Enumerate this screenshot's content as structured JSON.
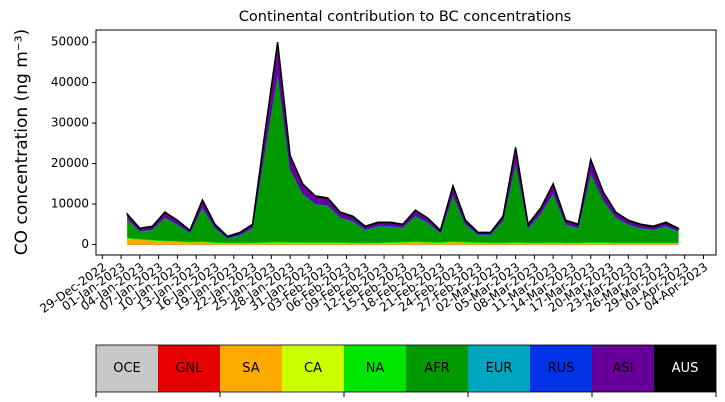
{
  "chart_data": {
    "type": "stacked_area",
    "title": "Continental contribution to BC concentrations",
    "y_label": "CO concentration (ng m⁻³)",
    "x": [
      "2023-01-02",
      "2023-01-04",
      "2023-01-06",
      "2023-01-08",
      "2023-01-10",
      "2023-01-12",
      "2023-01-14",
      "2023-01-16",
      "2023-01-18",
      "2023-01-20",
      "2023-01-22",
      "2023-01-24",
      "2023-01-26",
      "2023-01-28",
      "2023-01-30",
      "2023-02-01",
      "2023-02-03",
      "2023-02-05",
      "2023-02-07",
      "2023-02-09",
      "2023-02-11",
      "2023-02-13",
      "2023-02-15",
      "2023-02-17",
      "2023-02-19",
      "2023-02-21",
      "2023-02-23",
      "2023-02-25",
      "2023-02-27",
      "2023-03-01",
      "2023-03-03",
      "2023-03-05",
      "2023-03-07",
      "2023-03-09",
      "2023-03-11",
      "2023-03-13",
      "2023-03-15",
      "2023-03-17",
      "2023-03-19",
      "2023-03-21",
      "2023-03-23",
      "2023-03-25",
      "2023-03-27",
      "2023-03-29",
      "2023-03-31"
    ],
    "series": [
      {
        "name": "OCE",
        "color": "#c8c8c8",
        "values": [
          0,
          0,
          0,
          0,
          0,
          0,
          0,
          0,
          0,
          0,
          0,
          0,
          0,
          0,
          0,
          0,
          0,
          0,
          0,
          0,
          0,
          0,
          0,
          0,
          0,
          0,
          0,
          0,
          0,
          0,
          0,
          0,
          0,
          0,
          0,
          0,
          0,
          0,
          0,
          0,
          0,
          0,
          0,
          0,
          0
        ]
      },
      {
        "name": "GNL",
        "color": "#e60000",
        "values": [
          0,
          0,
          0,
          0,
          0,
          0,
          0,
          0,
          0,
          0,
          0,
          0,
          0,
          0,
          0,
          0,
          0,
          0,
          0,
          0,
          0,
          0,
          0,
          0,
          0,
          0,
          0,
          0,
          0,
          0,
          0,
          0,
          0,
          0,
          0,
          0,
          0,
          0,
          0,
          0,
          0,
          0,
          0,
          0,
          0
        ]
      },
      {
        "name": "SA",
        "color": "#ffaa00",
        "values": [
          1500,
          1200,
          1000,
          800,
          700,
          500,
          600,
          400,
          300,
          300,
          300,
          400,
          500,
          400,
          400,
          400,
          400,
          400,
          300,
          300,
          300,
          400,
          500,
          600,
          500,
          400,
          600,
          500,
          400,
          300,
          300,
          400,
          300,
          300,
          400,
          300,
          300,
          400,
          400,
          300,
          300,
          300,
          300,
          300,
          300
        ]
      },
      {
        "name": "CA",
        "color": "#ccff00",
        "values": [
          0,
          0,
          0,
          0,
          0,
          0,
          0,
          0,
          0,
          0,
          0,
          0,
          0,
          0,
          0,
          0,
          0,
          0,
          0,
          0,
          0,
          0,
          0,
          0,
          0,
          0,
          0,
          0,
          0,
          0,
          0,
          0,
          0,
          0,
          0,
          0,
          0,
          0,
          0,
          0,
          0,
          0,
          0,
          0,
          0
        ]
      },
      {
        "name": "NA",
        "color": "#00e600",
        "values": [
          200,
          200,
          200,
          200,
          200,
          200,
          200,
          200,
          200,
          200,
          200,
          200,
          200,
          200,
          200,
          200,
          200,
          200,
          200,
          200,
          200,
          200,
          200,
          200,
          200,
          200,
          200,
          200,
          200,
          200,
          200,
          200,
          200,
          200,
          200,
          200,
          200,
          200,
          200,
          200,
          200,
          200,
          200,
          200,
          200
        ]
      },
      {
        "name": "AFR",
        "color": "#009900",
        "values": [
          4400,
          1700,
          2300,
          5500,
          3900,
          2000,
          8200,
          3300,
          900,
          1700,
          3400,
          22900,
          41500,
          17800,
          11800,
          9300,
          8900,
          5900,
          5100,
          3000,
          3900,
          3800,
          3300,
          6100,
          4500,
          2100,
          11200,
          4100,
          1700,
          1800,
          5200,
          19500,
          3400,
          6900,
          11900,
          4300,
          3400,
          16900,
          10100,
          6000,
          4300,
          3400,
          3000,
          3900,
          2600
        ]
      },
      {
        "name": "EUR",
        "color": "#00a5c0",
        "values": [
          100,
          100,
          100,
          100,
          100,
          100,
          100,
          100,
          100,
          100,
          100,
          100,
          100,
          100,
          100,
          100,
          100,
          100,
          100,
          100,
          100,
          100,
          100,
          100,
          100,
          100,
          100,
          100,
          100,
          100,
          100,
          100,
          100,
          100,
          100,
          100,
          100,
          100,
          100,
          100,
          100,
          100,
          100,
          100,
          100
        ]
      },
      {
        "name": "RUS",
        "color": "#0033e6",
        "values": [
          100,
          100,
          100,
          100,
          100,
          100,
          100,
          100,
          100,
          100,
          100,
          100,
          100,
          100,
          100,
          100,
          100,
          100,
          100,
          100,
          100,
          100,
          100,
          100,
          100,
          100,
          100,
          100,
          100,
          100,
          100,
          100,
          100,
          100,
          100,
          100,
          100,
          100,
          100,
          100,
          100,
          100,
          100,
          100,
          100
        ]
      },
      {
        "name": "ASI",
        "color": "#660099",
        "values": [
          1100,
          600,
          700,
          1200,
          900,
          500,
          1700,
          800,
          300,
          500,
          800,
          4200,
          7500,
          3300,
          2300,
          1800,
          1700,
          1200,
          1100,
          700,
          800,
          800,
          700,
          1300,
          1000,
          500,
          2200,
          900,
          400,
          400,
          1000,
          3600,
          800,
          1300,
          2200,
          900,
          800,
          3200,
          2000,
          1200,
          900,
          800,
          700,
          800,
          600
        ]
      },
      {
        "name": "AUS",
        "color": "#000000",
        "values": [
          100,
          100,
          100,
          100,
          100,
          100,
          100,
          100,
          100,
          100,
          100,
          100,
          100,
          100,
          100,
          100,
          100,
          100,
          100,
          100,
          100,
          100,
          100,
          100,
          100,
          100,
          100,
          100,
          100,
          100,
          100,
          100,
          100,
          100,
          100,
          100,
          100,
          100,
          100,
          100,
          100,
          100,
          100,
          100,
          100
        ]
      }
    ],
    "xlim": [
      "2022-12-28",
      "2023-04-06"
    ],
    "ylim": [
      -2600,
      53000
    ],
    "yticks": [
      0,
      10000,
      20000,
      30000,
      40000,
      50000
    ],
    "xticks": [
      {
        "value": "2022-12-29",
        "label": "29-Dec-2022"
      },
      {
        "value": "2023-01-01",
        "label": "01-Jan-2023"
      },
      {
        "value": "2023-01-04",
        "label": "04-Jan-2023"
      },
      {
        "value": "2023-01-07",
        "label": "07-Jan-2023"
      },
      {
        "value": "2023-01-10",
        "label": "10-Jan-2023"
      },
      {
        "value": "2023-01-13",
        "label": "13-Jan-2023"
      },
      {
        "value": "2023-01-16",
        "label": "16-Jan-2023"
      },
      {
        "value": "2023-01-19",
        "label": "19-Jan-2023"
      },
      {
        "value": "2023-01-22",
        "label": "22-Jan-2023"
      },
      {
        "value": "2023-01-25",
        "label": "25-Jan-2023"
      },
      {
        "value": "2023-01-28",
        "label": "28-Jan-2023"
      },
      {
        "value": "2023-01-31",
        "label": "31-Jan-2023"
      },
      {
        "value": "2023-02-03",
        "label": "03-Feb-2023"
      },
      {
        "value": "2023-02-06",
        "label": "06-Feb-2023"
      },
      {
        "value": "2023-02-09",
        "label": "09-Feb-2023"
      },
      {
        "value": "2023-02-12",
        "label": "12-Feb-2023"
      },
      {
        "value": "2023-02-15",
        "label": "15-Feb-2023"
      },
      {
        "value": "2023-02-18",
        "label": "18-Feb-2023"
      },
      {
        "value": "2023-02-21",
        "label": "21-Feb-2023"
      },
      {
        "value": "2023-02-24",
        "label": "24-Feb-2023"
      },
      {
        "value": "2023-02-27",
        "label": "27-Feb-2023"
      },
      {
        "value": "2023-03-02",
        "label": "02-Mar-2023"
      },
      {
        "value": "2023-03-05",
        "label": "05-Mar-2023"
      },
      {
        "value": "2023-03-08",
        "label": "08-Mar-2023"
      },
      {
        "value": "2023-03-11",
        "label": "11-Mar-2023"
      },
      {
        "value": "2023-03-14",
        "label": "14-Mar-2023"
      },
      {
        "value": "2023-03-17",
        "label": "17-Mar-2023"
      },
      {
        "value": "2023-03-20",
        "label": "20-Mar-2023"
      },
      {
        "value": "2023-03-23",
        "label": "23-Mar-2023"
      },
      {
        "value": "2023-03-26",
        "label": "26-Mar-2023"
      },
      {
        "value": "2023-03-29",
        "label": "29-Mar-2023"
      },
      {
        "value": "2023-04-01",
        "label": "01-Apr-2023"
      },
      {
        "value": "2023-04-04",
        "label": "04-Apr-2023"
      }
    ],
    "grid": false,
    "legend": "bottom"
  }
}
